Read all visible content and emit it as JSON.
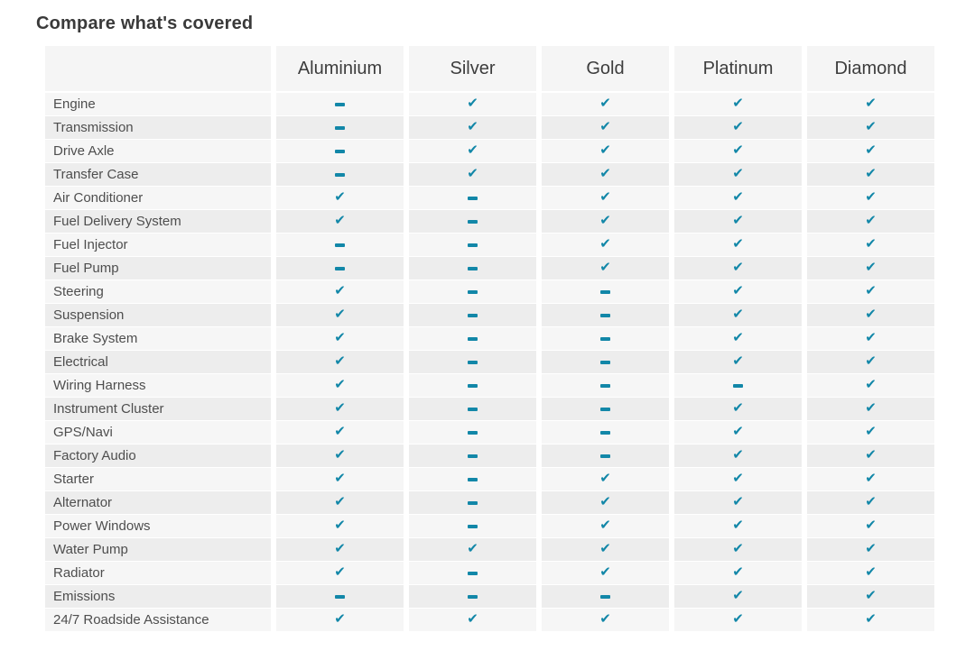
{
  "page": {
    "title": "Compare what's covered"
  },
  "colors": {
    "accent": "#1287a8",
    "header_bg": "#f5f5f5",
    "row_light": "#f6f6f6",
    "row_dark": "#ededed"
  },
  "icons": {
    "check": "✔"
  },
  "table": {
    "columns": [
      "Aluminium",
      "Silver",
      "Gold",
      "Platinum",
      "Diamond"
    ],
    "rows": [
      {
        "label": "Engine",
        "values": [
          "dash",
          "check",
          "check",
          "check",
          "check"
        ]
      },
      {
        "label": "Transmission",
        "values": [
          "dash",
          "check",
          "check",
          "check",
          "check"
        ]
      },
      {
        "label": "Drive Axle",
        "values": [
          "dash",
          "check",
          "check",
          "check",
          "check"
        ]
      },
      {
        "label": "Transfer Case",
        "values": [
          "dash",
          "check",
          "check",
          "check",
          "check"
        ]
      },
      {
        "label": "Air Conditioner",
        "values": [
          "check",
          "dash",
          "check",
          "check",
          "check"
        ]
      },
      {
        "label": "Fuel Delivery System",
        "values": [
          "check",
          "dash",
          "check",
          "check",
          "check"
        ]
      },
      {
        "label": "Fuel Injector",
        "values": [
          "dash",
          "dash",
          "check",
          "check",
          "check"
        ]
      },
      {
        "label": "Fuel Pump",
        "values": [
          "dash",
          "dash",
          "check",
          "check",
          "check"
        ]
      },
      {
        "label": "Steering",
        "values": [
          "check",
          "dash",
          "dash",
          "check",
          "check"
        ]
      },
      {
        "label": "Suspension",
        "values": [
          "check",
          "dash",
          "dash",
          "check",
          "check"
        ]
      },
      {
        "label": "Brake System",
        "values": [
          "check",
          "dash",
          "dash",
          "check",
          "check"
        ]
      },
      {
        "label": "Electrical",
        "values": [
          "check",
          "dash",
          "dash",
          "check",
          "check"
        ]
      },
      {
        "label": "Wiring Harness",
        "values": [
          "check",
          "dash",
          "dash",
          "dash",
          "check"
        ]
      },
      {
        "label": "Instrument Cluster",
        "values": [
          "check",
          "dash",
          "dash",
          "check",
          "check"
        ]
      },
      {
        "label": "GPS/Navi",
        "values": [
          "check",
          "dash",
          "dash",
          "check",
          "check"
        ]
      },
      {
        "label": "Factory Audio",
        "values": [
          "check",
          "dash",
          "dash",
          "check",
          "check"
        ]
      },
      {
        "label": "Starter",
        "values": [
          "check",
          "dash",
          "check",
          "check",
          "check"
        ]
      },
      {
        "label": "Alternator",
        "values": [
          "check",
          "dash",
          "check",
          "check",
          "check"
        ]
      },
      {
        "label": "Power Windows",
        "values": [
          "check",
          "dash",
          "check",
          "check",
          "check"
        ]
      },
      {
        "label": "Water Pump",
        "values": [
          "check",
          "check",
          "check",
          "check",
          "check"
        ]
      },
      {
        "label": "Radiator",
        "values": [
          "check",
          "dash",
          "check",
          "check",
          "check"
        ]
      },
      {
        "label": "Emissions",
        "values": [
          "dash",
          "dash",
          "dash",
          "check",
          "check"
        ]
      },
      {
        "label": "24/7 Roadside Assistance",
        "values": [
          "check",
          "check",
          "check",
          "check",
          "check"
        ]
      }
    ]
  }
}
